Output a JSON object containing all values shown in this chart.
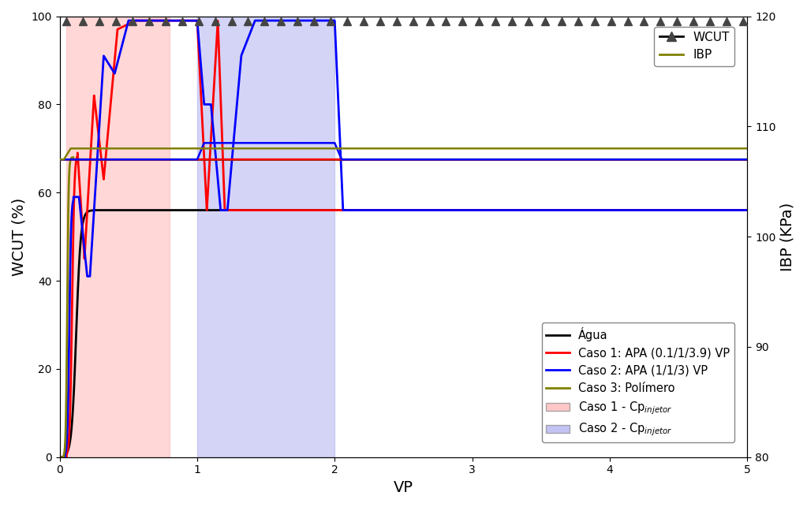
{
  "xlim": [
    0,
    5
  ],
  "ylim_left": [
    0,
    100
  ],
  "ylim_right": [
    80,
    120
  ],
  "xlabel": "VP",
  "ylabel_left": "WCUT (%)",
  "ylabel_right": "IBP (KPa)",
  "bg_pink_x0": 0.05,
  "bg_pink_x1": 0.8,
  "bg_blue_x0": 1.0,
  "bg_blue_x1": 2.0,
  "bg_pink_color": "#FFB0B0",
  "bg_blue_color": "#AAAAEE",
  "wcut_agua_color": "#000000",
  "wcut_caso1_color": "#FF0000",
  "wcut_caso2_color": "#0000FF",
  "wcut_caso3_color": "#808000",
  "marker_color": "#444444",
  "ibp_line_color": "#808000",
  "legend_top_labels": [
    "WCUT",
    "IBP"
  ],
  "legend_labels": [
    "Água",
    "Caso 1: APA (0.1/1/3.9) VP",
    "Caso 2: APA (1/1/3) VP",
    "Caso 3: Polímero",
    "Caso 1 - Cp$_{injetor}$",
    "Caso 2 - Cp$_{injetor}$"
  ],
  "xticks": [
    0,
    1,
    2,
    3,
    4,
    5
  ],
  "yticks_left": [
    0,
    20,
    40,
    60,
    80,
    100
  ],
  "yticks_right": [
    80,
    90,
    100,
    110,
    120
  ],
  "ibp_steady_kpa": 107.0,
  "ibp_caso2_high_kpa": 108.5,
  "ibp_caso3_high_kpa": 108.0
}
